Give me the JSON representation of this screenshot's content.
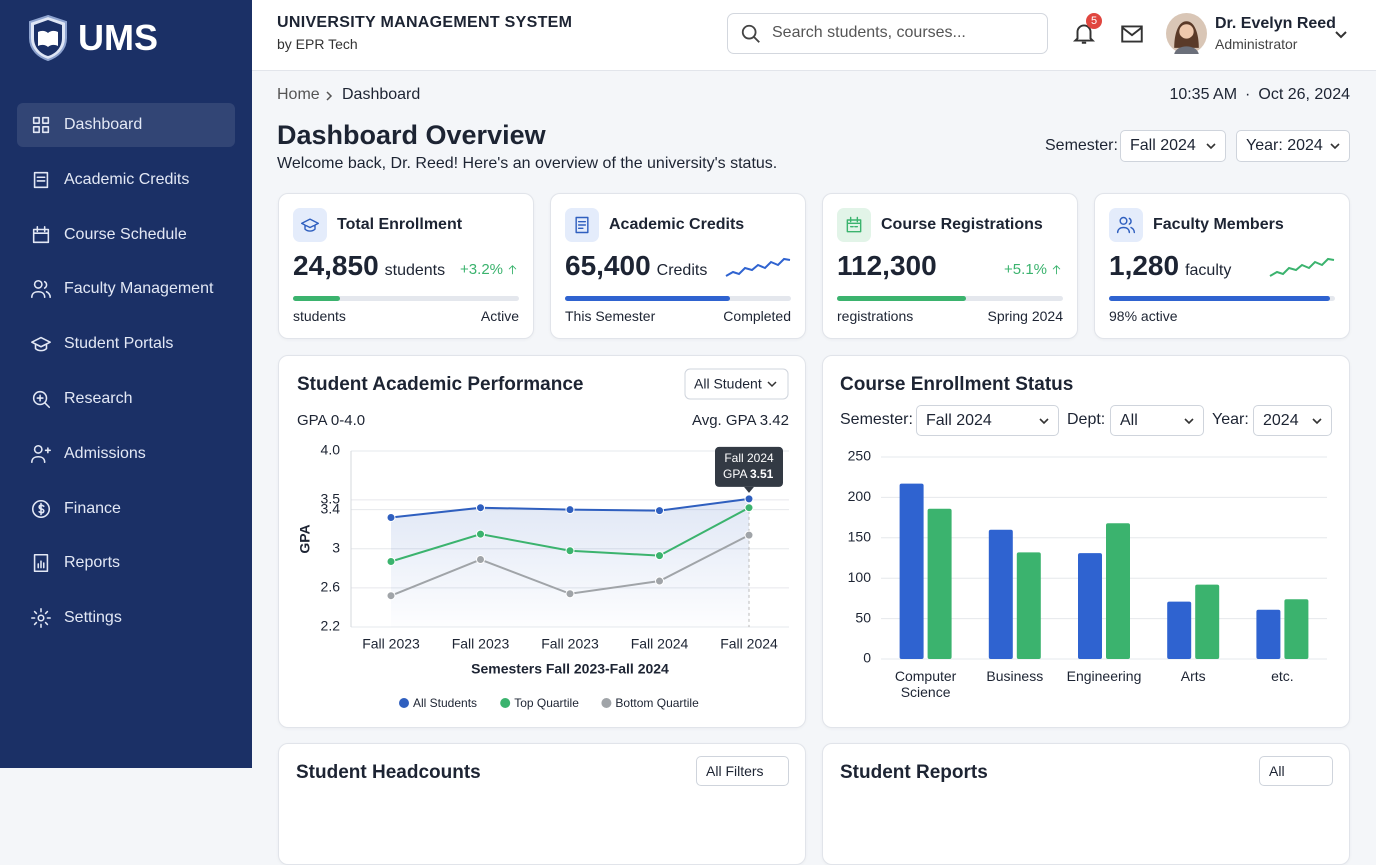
{
  "sidebar": {
    "logo": "UMS",
    "nav": [
      "Dashboard",
      "Academic Credits",
      "Course Schedule",
      "Faculty Management",
      "Student Portals",
      "Research",
      "Admissions",
      "Finance",
      "Reports",
      "Settings"
    ],
    "active": 0
  },
  "header": {
    "title": "UNIVERSITY MANAGEMENT SYSTEM",
    "subtitle": "by EPR Tech",
    "search_placeholder": "Search students, courses...",
    "notifications": 5,
    "user": {
      "name": "Dr. Evelyn Reed",
      "role": "Administrator"
    }
  },
  "breadcrumb": [
    "Home",
    "Dashboard"
  ],
  "time": "10:35 AM",
  "date": "Oct 26, 2024",
  "page": {
    "title": "Dashboard Overview",
    "subtitle": "Welcome back, Dr. Reed! Here's an overview of the university's status.",
    "semester_label": "Semester:",
    "semester": "Fall 2024",
    "year": "Year: 2024"
  },
  "cards": [
    {
      "title": "Total Enrollment",
      "value": "24,850",
      "unit": "students",
      "change": "+3.2%",
      "progress": 21,
      "color": "#3bb36e",
      "footer_left": "students",
      "footer_right": "Active"
    },
    {
      "title": "Academic Credits",
      "value": "65,400",
      "unit": "Credits",
      "progress": 73,
      "color": "#2f63d0",
      "footer_left": "This Semester",
      "footer_right": "Completed"
    },
    {
      "title": "Course Registrations",
      "value": "112,300",
      "change": "+5.1%",
      "progress": 57,
      "color": "#3bb36e",
      "footer_left": "registrations",
      "footer_right": "Spring 2024"
    },
    {
      "title": "Faculty Members",
      "value": "1,280",
      "unit": "faculty",
      "progress": 98,
      "color": "#2f63d0",
      "footer_left": "98% active"
    }
  ],
  "chart_data": [
    {
      "type": "line",
      "title": "Student Academic Performance",
      "filter": "All Student",
      "subtitle": "GPA 0-4.0",
      "annotation": "Avg. GPA 3.42",
      "y_label": "GPA",
      "x_label": "Semesters Fall 2023-Fall 2024",
      "categories": [
        "Fall 2023",
        "Fall 2023",
        "Fall 2023",
        "Fall 2024",
        "Fall 2024"
      ],
      "series": [
        {
          "name": "All Students",
          "color": "#2f5fbf",
          "values": [
            3.32,
            3.42,
            3.4,
            3.39,
            3.51
          ]
        },
        {
          "name": "Top Quartile",
          "color": "#3bb36e",
          "values": [
            2.87,
            3.15,
            2.98,
            2.93,
            3.42
          ]
        },
        {
          "name": "Bottom Quartile",
          "color": "#a0a4a8",
          "values": [
            2.52,
            2.89,
            2.54,
            2.67,
            3.14
          ]
        }
      ],
      "ylim": [
        2.2,
        4.0
      ],
      "yticks": [
        2.2,
        2.6,
        3,
        3.4,
        3.5,
        {
          "value": 4,
          "label": "4.0"
        }
      ],
      "grid": true,
      "tooltip": {
        "label": "GPA",
        "series": 0,
        "index": 4
      },
      "legend": "bottom"
    },
    {
      "type": "bar",
      "title": "Course Enrollment Status",
      "filters": [
        {
          "label": "Semester:",
          "value": "Fall 2024"
        },
        {
          "label": "Dept:",
          "value": "All"
        },
        {
          "label": "Year:",
          "value": "2024"
        }
      ],
      "categories": [
        "Computer Science",
        "Business",
        "Engineering",
        "Arts",
        "etc."
      ],
      "series": [
        {
          "color": "#2f63d0",
          "values": [
            217,
            160,
            131,
            71,
            61
          ]
        },
        {
          "color": "#3bb36e",
          "values": [
            186,
            132,
            168,
            92,
            74
          ]
        }
      ],
      "ylim": [
        0,
        250
      ],
      "yticks": [
        0,
        50,
        100,
        150,
        200,
        250
      ],
      "grid": true
    }
  ],
  "bottom_cards": [
    {
      "title": "Student Headcounts",
      "filter": "All Filters"
    },
    {
      "title": "Student Reports",
      "filter": "All"
    }
  ]
}
